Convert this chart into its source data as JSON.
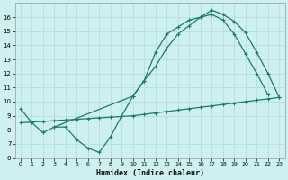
{
  "xlabel": "Humidex (Indice chaleur)",
  "bg_color": "#cff0f0",
  "grid_color": "#b8e0e0",
  "line_color": "#1a7a6a",
  "xlim": [
    -0.5,
    23.5
  ],
  "ylim": [
    6,
    17
  ],
  "xticks": [
    0,
    1,
    2,
    3,
    4,
    5,
    6,
    7,
    8,
    9,
    10,
    11,
    12,
    13,
    14,
    15,
    16,
    17,
    18,
    19,
    20,
    21,
    22,
    23
  ],
  "yticks": [
    6,
    7,
    8,
    9,
    10,
    11,
    12,
    13,
    14,
    15,
    16
  ],
  "line1_x": [
    0,
    1,
    2,
    3,
    4,
    5,
    6,
    7,
    8,
    9,
    10,
    11,
    12,
    13,
    14,
    15,
    16,
    17,
    18,
    19,
    20,
    21,
    22
  ],
  "line1_y": [
    9.5,
    8.5,
    7.8,
    8.2,
    8.2,
    7.3,
    6.7,
    6.4,
    7.5,
    9.0,
    10.4,
    11.5,
    13.5,
    14.8,
    15.3,
    15.8,
    16.0,
    16.2,
    15.8,
    14.8,
    13.4,
    12.0,
    10.5
  ],
  "line2_x": [
    0,
    1,
    2,
    3,
    4,
    5,
    6,
    7,
    8,
    9,
    10,
    11,
    12,
    13,
    14,
    15,
    16,
    17,
    18,
    19,
    20,
    21,
    22,
    23
  ],
  "line2_y": [
    8.5,
    8.55,
    8.6,
    8.65,
    8.7,
    8.75,
    8.8,
    8.85,
    8.9,
    8.95,
    9.0,
    9.1,
    9.2,
    9.3,
    9.4,
    9.5,
    9.6,
    9.7,
    9.8,
    9.9,
    10.0,
    10.1,
    10.2,
    10.3
  ],
  "line3_x": [
    3,
    10,
    11,
    12,
    13,
    14,
    15,
    16,
    17,
    18,
    19,
    20,
    21,
    22,
    23
  ],
  "line3_y": [
    8.2,
    10.4,
    11.5,
    12.5,
    13.8,
    14.8,
    15.4,
    16.0,
    16.5,
    16.2,
    15.7,
    14.9,
    13.5,
    12.0,
    10.3
  ]
}
